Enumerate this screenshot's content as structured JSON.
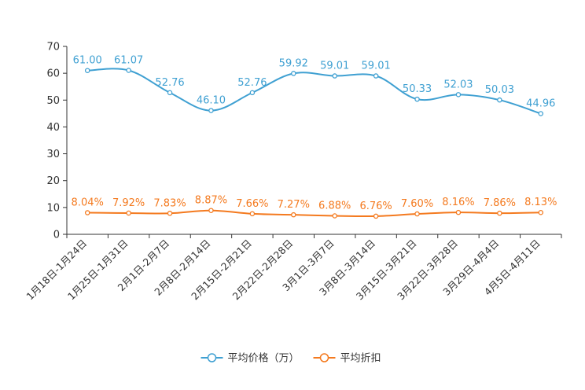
{
  "chart_data": {
    "type": "line",
    "categories": [
      "1月18日-1月24日",
      "1月25日-1月31日",
      "2月1日-2月7日",
      "2月8日-2月14日",
      "2月15日-2月21日",
      "2月22日-2月28日",
      "3月1日-3月7日",
      "3月8日-3月14日",
      "3月15日-3月21日",
      "3月22日-3月28日",
      "3月29日-4月4日",
      "4月5日-4月11日"
    ],
    "series": [
      {
        "name": "平均价格（万）",
        "color": "#3fa0d2",
        "values": [
          61.0,
          61.07,
          52.76,
          46.1,
          52.76,
          59.92,
          59.01,
          59.01,
          50.33,
          52.03,
          50.03,
          44.96
        ],
        "labels": [
          "61.00",
          "61.07",
          "52.76",
          "46.10",
          "52.76",
          "59.92",
          "59.01",
          "59.01",
          "50.33",
          "52.03",
          "50.03",
          "44.96"
        ]
      },
      {
        "name": "平均折扣",
        "color": "#f47a1f",
        "values": [
          8.04,
          7.92,
          7.83,
          8.87,
          7.66,
          7.27,
          6.88,
          6.76,
          7.6,
          8.16,
          7.86,
          8.13
        ],
        "labels": [
          "8.04%",
          "7.92%",
          "7.83%",
          "8.87%",
          "7.66%",
          "7.27%",
          "6.88%",
          "6.76%",
          "7.60%",
          "8.16%",
          "7.86%",
          "8.13%"
        ]
      }
    ],
    "y_ticks": [
      0,
      10,
      20,
      30,
      40,
      50,
      60,
      70
    ],
    "ylim": [
      0,
      70
    ],
    "legend_position": "bottom-center",
    "grid": false,
    "title": "",
    "xlabel": "",
    "ylabel": ""
  }
}
